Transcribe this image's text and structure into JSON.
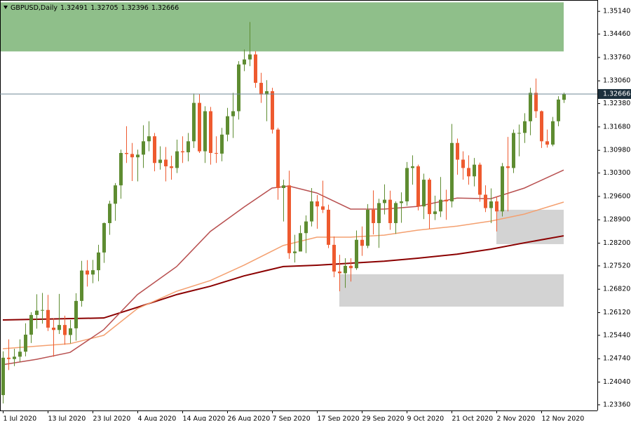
{
  "chart_data": {
    "type": "candlestick",
    "symbol": "GBPUSD,Daily",
    "bull_color": "#5e8c31",
    "bear_color": "#ee5a2f",
    "xlim": [
      -0.5,
      106
    ],
    "ylim": [
      1.2319,
      1.3548
    ],
    "xticks": [
      {
        "value": 0,
        "label": "1 Jul 2020"
      },
      {
        "value": 8,
        "label": "13 Jul 2020"
      },
      {
        "value": 16,
        "label": "23 Jul 2020"
      },
      {
        "value": 24,
        "label": "4 Aug 2020"
      },
      {
        "value": 32,
        "label": "14 Aug 2020"
      },
      {
        "value": 40,
        "label": "26 Aug 2020"
      },
      {
        "value": 48,
        "label": "7 Sep 2020"
      },
      {
        "value": 56,
        "label": "17 Sep 2020"
      },
      {
        "value": 64,
        "label": "29 Sep 2020"
      },
      {
        "value": 72,
        "label": "9 Oct 2020"
      },
      {
        "value": 80,
        "label": "21 Oct 2020"
      },
      {
        "value": 88,
        "label": "2 Nov 2020"
      },
      {
        "value": 96,
        "label": "12 Nov 2020"
      }
    ],
    "yticks": [
      {
        "value": 1.3514,
        "label": "1.35140"
      },
      {
        "value": 1.3446,
        "label": "1.34460"
      },
      {
        "value": 1.3376,
        "label": "1.33760"
      },
      {
        "value": 1.3306,
        "label": "1.33060"
      },
      {
        "value": 1.3238,
        "label": "1.32380"
      },
      {
        "value": 1.3168,
        "label": "1.31680"
      },
      {
        "value": 1.3098,
        "label": "1.30980"
      },
      {
        "value": 1.303,
        "label": "1.30300"
      },
      {
        "value": 1.296,
        "label": "1.29600"
      },
      {
        "value": 1.289,
        "label": "1.28900"
      },
      {
        "value": 1.282,
        "label": "1.28200"
      },
      {
        "value": 1.2752,
        "label": "1.27520"
      },
      {
        "value": 1.2682,
        "label": "1.26820"
      },
      {
        "value": 1.2612,
        "label": "1.26120"
      },
      {
        "value": 1.2544,
        "label": "1.25440"
      },
      {
        "value": 1.2474,
        "label": "1.24740"
      },
      {
        "value": 1.2404,
        "label": "1.24040"
      },
      {
        "value": 1.2336,
        "label": "1.23360"
      }
    ],
    "zones": [
      {
        "color": "#8fbf8a",
        "x": [
          -0.5,
          100
        ],
        "y": [
          1.3394,
          1.3541
        ]
      },
      {
        "color": "#d3d3d3",
        "x": [
          60,
          100
        ],
        "y": [
          1.263,
          1.2727
        ]
      },
      {
        "color": "#d3d3d3",
        "x": [
          88,
          100
        ],
        "y": [
          1.2817,
          1.292
        ]
      }
    ],
    "lines": [
      {
        "color": "#8b0000",
        "x": [
          0,
          18,
          24,
          31,
          37,
          43,
          50,
          56,
          62,
          68,
          74,
          81,
          87,
          93,
          100
        ],
        "values": [
          1.259,
          1.2596,
          1.2628,
          1.2666,
          1.2691,
          1.2722,
          1.275,
          1.2754,
          1.276,
          1.2766,
          1.2775,
          1.2787,
          1.2802,
          1.2821,
          1.2842
        ]
      },
      {
        "color": "#f4a070",
        "x": [
          0,
          12,
          18,
          24,
          31,
          37,
          43,
          50,
          56,
          62,
          68,
          74,
          81,
          87,
          93,
          100
        ],
        "values": [
          1.2504,
          1.2519,
          1.2544,
          1.2624,
          1.2676,
          1.2708,
          1.2754,
          1.2813,
          1.2838,
          1.2838,
          1.2844,
          1.2859,
          1.2871,
          1.2886,
          1.2907,
          1.2943
        ]
      },
      {
        "color": "#b85050",
        "x": [
          0,
          6,
          12,
          18,
          24,
          31,
          37,
          43,
          48,
          51,
          56,
          62,
          68,
          74,
          81,
          87,
          93,
          100
        ],
        "values": [
          1.2456,
          1.2472,
          1.2493,
          1.2561,
          1.2666,
          1.275,
          1.2855,
          1.2928,
          1.2985,
          1.2991,
          1.297,
          1.2922,
          1.2922,
          1.293,
          1.2955,
          1.2953,
          1.2985,
          1.3039
        ]
      }
    ],
    "candles": [
      [
        1.2365,
        1.2496,
        1.234,
        1.2477
      ],
      [
        1.2477,
        1.2532,
        1.244,
        1.2473
      ],
      [
        1.2473,
        1.2504,
        1.2452,
        1.248
      ],
      [
        1.248,
        1.2532,
        1.2464,
        1.2495
      ],
      [
        1.2495,
        1.258,
        1.2481,
        1.2546
      ],
      [
        1.2546,
        1.2613,
        1.2521,
        1.2605
      ],
      [
        1.2605,
        1.2667,
        1.2564,
        1.2618
      ],
      [
        1.2618,
        1.2671,
        1.2579,
        1.262
      ],
      [
        1.262,
        1.2665,
        1.2557,
        1.2567
      ],
      [
        1.2567,
        1.2595,
        1.248,
        1.256
      ],
      [
        1.256,
        1.2668,
        1.2548,
        1.2575
      ],
      [
        1.2575,
        1.2603,
        1.2516,
        1.2545
      ],
      [
        1.2545,
        1.259,
        1.252,
        1.2565
      ],
      [
        1.2565,
        1.267,
        1.2528,
        1.2647
      ],
      [
        1.2647,
        1.2767,
        1.263,
        1.2738
      ],
      [
        1.2738,
        1.2769,
        1.269,
        1.2726
      ],
      [
        1.2726,
        1.277,
        1.27,
        1.2739
      ],
      [
        1.2739,
        1.2815,
        1.2706,
        1.2792
      ],
      [
        1.2792,
        1.2882,
        1.2761,
        1.288
      ],
      [
        1.288,
        1.2947,
        1.2845,
        1.2938
      ],
      [
        1.2938,
        1.3,
        1.2887,
        1.2993
      ],
      [
        1.2993,
        1.31,
        1.2953,
        1.309
      ],
      [
        1.309,
        1.317,
        1.306,
        1.3087
      ],
      [
        1.3087,
        1.312,
        1.3006,
        1.3077
      ],
      [
        1.3077,
        1.31,
        1.3005,
        1.3085
      ],
      [
        1.3085,
        1.3173,
        1.3045,
        1.3125
      ],
      [
        1.3125,
        1.3185,
        1.3095,
        1.314
      ],
      [
        1.314,
        1.315,
        1.3035,
        1.306
      ],
      [
        1.306,
        1.311,
        1.304,
        1.307
      ],
      [
        1.307,
        1.3108,
        1.3005,
        1.305
      ],
      [
        1.305,
        1.3082,
        1.301,
        1.3045
      ],
      [
        1.3045,
        1.313,
        1.303,
        1.3095
      ],
      [
        1.3095,
        1.314,
        1.306,
        1.3092
      ],
      [
        1.3092,
        1.315,
        1.3065,
        1.3125
      ],
      [
        1.3125,
        1.3268,
        1.3105,
        1.324
      ],
      [
        1.324,
        1.3267,
        1.309,
        1.3095
      ],
      [
        1.3095,
        1.323,
        1.306,
        1.3215
      ],
      [
        1.3215,
        1.3228,
        1.3055,
        1.309
      ],
      [
        1.309,
        1.314,
        1.306,
        1.3088
      ],
      [
        1.3088,
        1.3165,
        1.3065,
        1.3145
      ],
      [
        1.3145,
        1.3225,
        1.3125,
        1.32
      ],
      [
        1.32,
        1.327,
        1.3135,
        1.3215
      ],
      [
        1.3215,
        1.3365,
        1.319,
        1.3355
      ],
      [
        1.3355,
        1.34,
        1.3335,
        1.337
      ],
      [
        1.337,
        1.3482,
        1.335,
        1.3385
      ],
      [
        1.3385,
        1.3395,
        1.3285,
        1.33
      ],
      [
        1.33,
        1.333,
        1.324,
        1.3265
      ],
      [
        1.3265,
        1.3308,
        1.3185,
        1.3275
      ],
      [
        1.3275,
        1.3285,
        1.3148,
        1.316
      ],
      [
        1.316,
        1.3165,
        1.295,
        1.2985
      ],
      [
        1.2985,
        1.301,
        1.2885,
        1.2993
      ],
      [
        1.2993,
        1.3037,
        1.2773,
        1.279
      ],
      [
        1.279,
        1.2845,
        1.2762,
        1.2795
      ],
      [
        1.2795,
        1.2873,
        1.2795,
        1.285
      ],
      [
        1.285,
        1.2903,
        1.279,
        1.2885
      ],
      [
        1.2885,
        1.2985,
        1.287,
        1.2945
      ],
      [
        1.2945,
        1.2964,
        1.2863,
        1.293
      ],
      [
        1.293,
        1.3007,
        1.291,
        1.292
      ],
      [
        1.292,
        1.2935,
        1.2805,
        1.2815
      ],
      [
        1.2815,
        1.284,
        1.2718,
        1.2735
      ],
      [
        1.2735,
        1.2785,
        1.2676,
        1.273
      ],
      [
        1.273,
        1.2775,
        1.2686,
        1.2752
      ],
      [
        1.2752,
        1.2775,
        1.2705,
        1.2745
      ],
      [
        1.2745,
        1.2858,
        1.274,
        1.283
      ],
      [
        1.283,
        1.287,
        1.2782,
        1.2812
      ],
      [
        1.2812,
        1.2937,
        1.2805,
        1.292
      ],
      [
        1.292,
        1.2978,
        1.2846,
        1.288
      ],
      [
        1.288,
        1.2953,
        1.2806,
        1.294
      ],
      [
        1.294,
        1.2996,
        1.2906,
        1.295
      ],
      [
        1.295,
        1.2977,
        1.286,
        1.288
      ],
      [
        1.288,
        1.2945,
        1.2848,
        1.294
      ],
      [
        1.294,
        1.2972,
        1.2881,
        1.2945
      ],
      [
        1.2945,
        1.3063,
        1.2932,
        1.3045
      ],
      [
        1.3045,
        1.3083,
        1.2995,
        1.305
      ],
      [
        1.305,
        1.3055,
        1.2918,
        1.293
      ],
      [
        1.293,
        1.3028,
        1.2892,
        1.301
      ],
      [
        1.301,
        1.3015,
        1.2863,
        1.2907
      ],
      [
        1.2907,
        1.2962,
        1.2889,
        1.2915
      ],
      [
        1.2915,
        1.3018,
        1.2898,
        1.295
      ],
      [
        1.295,
        1.298,
        1.289,
        1.2945
      ],
      [
        1.2945,
        1.3177,
        1.2927,
        1.312
      ],
      [
        1.312,
        1.3133,
        1.3025,
        1.307
      ],
      [
        1.307,
        1.3095,
        1.301,
        1.3045
      ],
      [
        1.3045,
        1.3083,
        1.2995,
        1.302
      ],
      [
        1.302,
        1.3075,
        1.299,
        1.3055
      ],
      [
        1.3055,
        1.3061,
        1.2944,
        1.2965
      ],
      [
        1.2965,
        1.2993,
        1.2913,
        1.2925
      ],
      [
        1.2925,
        1.2984,
        1.288,
        1.2945
      ],
      [
        1.2945,
        1.296,
        1.2855,
        1.2915
      ],
      [
        1.2915,
        1.306,
        1.29,
        1.305
      ],
      [
        1.305,
        1.3138,
        1.2915,
        1.3045
      ],
      [
        1.3045,
        1.316,
        1.303,
        1.315
      ],
      [
        1.315,
        1.3175,
        1.308,
        1.315
      ],
      [
        1.315,
        1.3209,
        1.312,
        1.3185
      ],
      [
        1.3185,
        1.3285,
        1.3143,
        1.327
      ],
      [
        1.327,
        1.3313,
        1.3195,
        1.3215
      ],
      [
        1.3215,
        1.3217,
        1.3105,
        1.3125
      ],
      [
        1.3125,
        1.316,
        1.3106,
        1.3115
      ],
      [
        1.3115,
        1.3198,
        1.311,
        1.3185
      ],
      [
        1.3185,
        1.326,
        1.317,
        1.325
      ],
      [
        1.32491,
        1.32705,
        1.32396,
        1.32666
      ]
    ]
  }
}
